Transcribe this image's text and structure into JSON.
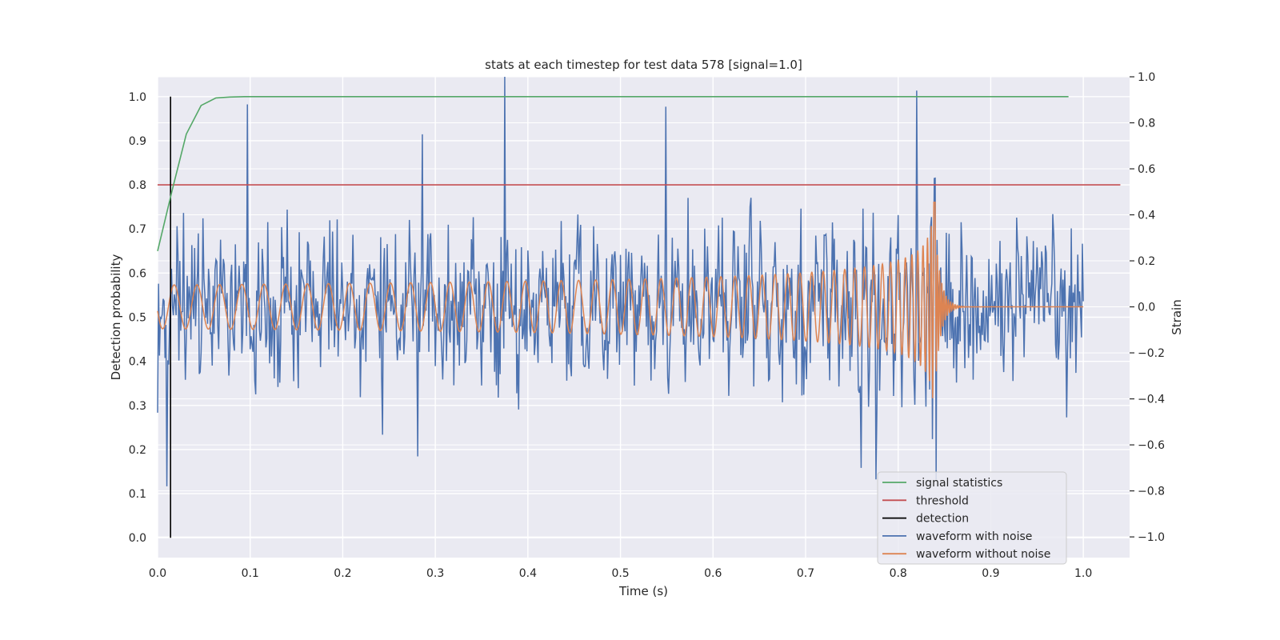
{
  "chart_data": {
    "type": "line",
    "title": "stats at each timestep for test data 578 [signal=1.0]",
    "xlabel": "Time (s)",
    "ylabel_left": "Detection probability",
    "ylabel_right": "Strain",
    "xlim": [
      0.0,
      1.05
    ],
    "ylim_left": [
      -0.045,
      1.045
    ],
    "ylim_right": [
      -1.09,
      1.0
    ],
    "xticks": [
      "0.0",
      "0.1",
      "0.2",
      "0.3",
      "0.4",
      "0.5",
      "0.6",
      "0.7",
      "0.8",
      "0.9",
      "1.0"
    ],
    "yticks_left": [
      "0.0",
      "0.1",
      "0.2",
      "0.3",
      "0.4",
      "0.5",
      "0.6",
      "0.7",
      "0.8",
      "0.9",
      "1.0"
    ],
    "yticks_right": [
      "−1.0",
      "−0.8",
      "−0.6",
      "−0.4",
      "−0.2",
      "0.0",
      "0.2",
      "0.4",
      "0.6",
      "0.8",
      "1.0"
    ],
    "grid": true,
    "legend_position": "lower-right",
    "series": [
      {
        "name": "signal statistics",
        "axis": "left",
        "color": "#55a868",
        "x": [
          0.0,
          0.016,
          0.031,
          0.047,
          0.063,
          0.078,
          0.094,
          0.2,
          0.4,
          0.6,
          0.8,
          0.984
        ],
        "y": [
          0.65,
          0.79,
          0.915,
          0.98,
          0.997,
          0.999,
          1.0,
          1.0,
          1.0,
          1.0,
          1.0,
          1.0
        ]
      },
      {
        "name": "threshold",
        "axis": "left",
        "color": "#c44e52",
        "x": [
          0.0,
          1.04
        ],
        "y": [
          0.8,
          0.8
        ]
      },
      {
        "name": "detection",
        "axis": "left",
        "color": "#000000",
        "x": [
          0.014,
          0.014
        ],
        "y": [
          0.0,
          1.0
        ]
      },
      {
        "name": "waveform with noise",
        "axis": "right",
        "color": "#4c72b0",
        "description": "noisy strain, roughly -0.4 to 0.4 with spikes up to 1.0 (t≈0.375) and down to -0.75 (t≈0.84)"
      },
      {
        "name": "waveform without noise",
        "axis": "right",
        "color": "#dd8452",
        "description": "chirp: amplitude ~0.1 at start growing to ~0.45 near t≈0.83, merger at t≈0.84, then flat 0"
      }
    ]
  }
}
